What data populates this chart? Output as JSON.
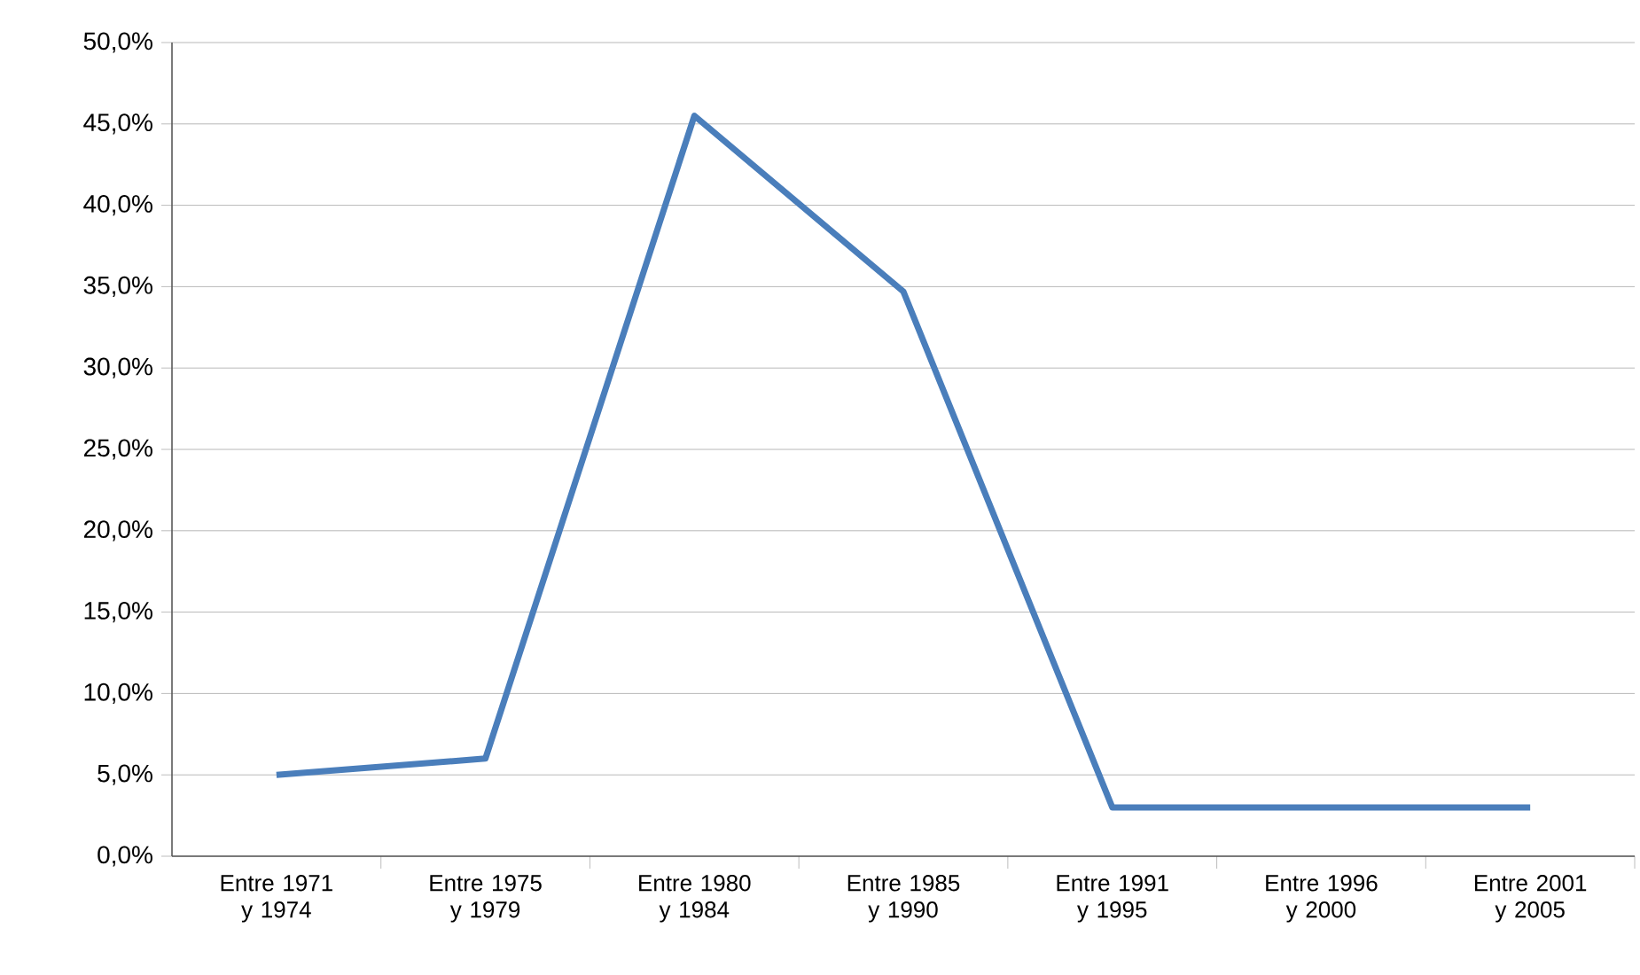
{
  "chart_data": {
    "type": "line",
    "categories": [
      "Entre 1971 y 1974",
      "Entre 1975 y 1979",
      "Entre 1980 y 1984",
      "Entre 1985 y 1990",
      "Entre 1991 y 1995",
      "Entre 1996 y 2000",
      "Entre 2001 y 2005"
    ],
    "values": [
      5.0,
      6.0,
      45.5,
      34.7,
      3.0,
      3.0,
      3.0
    ],
    "color": "#4a7ebb",
    "ylim": [
      0,
      50
    ],
    "yticks": [
      {
        "value": 0,
        "label": "0,0%"
      },
      {
        "value": 5,
        "label": "5,0%"
      },
      {
        "value": 10,
        "label": "10,0%"
      },
      {
        "value": 15,
        "label": "15,0%"
      },
      {
        "value": 20,
        "label": "20,0%"
      },
      {
        "value": 25,
        "label": "25,0%"
      },
      {
        "value": 30,
        "label": "30,0%"
      },
      {
        "value": 35,
        "label": "35,0%"
      },
      {
        "value": 40,
        "label": "40,0%"
      },
      {
        "value": 45,
        "label": "45,0%"
      },
      {
        "value": 50,
        "label": "50,0%"
      }
    ],
    "grid": "y",
    "marker": "none",
    "line_style": "solid"
  }
}
